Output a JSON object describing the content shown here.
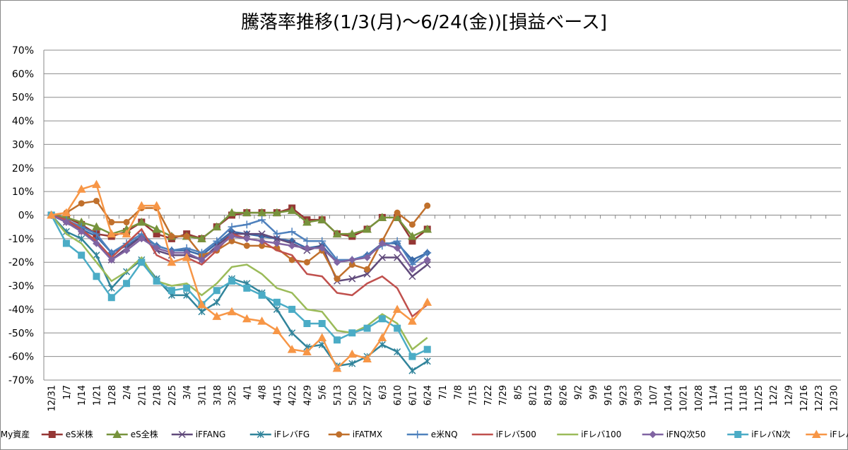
{
  "chart_data": {
    "type": "line",
    "title": "騰落率推移(1/3(月)～6/24(金))[損益ベース]",
    "categories": [
      "12/31",
      "1/7",
      "1/14",
      "1/21",
      "1/28",
      "2/4",
      "2/11",
      "2/18",
      "2/25",
      "3/4",
      "3/11",
      "3/18",
      "3/25",
      "4/1",
      "4/8",
      "4/15",
      "4/22",
      "4/29",
      "5/6",
      "5/13",
      "5/20",
      "5/27",
      "6/3",
      "6/10",
      "6/17",
      "6/24",
      "7/1",
      "7/8",
      "7/15",
      "7/22",
      "7/29",
      "8/5",
      "8/12",
      "8/19",
      "8/26",
      "9/2",
      "9/9",
      "9/16",
      "9/23",
      "9/30",
      "10/7",
      "10/14",
      "10/21",
      "10/28",
      "11/4",
      "11/11",
      "11/18",
      "11/25",
      "12/2",
      "12/9",
      "12/16",
      "12/23",
      "12/30"
    ],
    "ylim": [
      -70,
      70
    ],
    "yticks": [
      {
        "value": -70,
        "label": "-70%"
      },
      {
        "value": -60,
        "label": "-60%"
      },
      {
        "value": -50,
        "label": "-50%"
      },
      {
        "value": -40,
        "label": "-40%"
      },
      {
        "value": -30,
        "label": "-30%"
      },
      {
        "value": -20,
        "label": "-20%"
      },
      {
        "value": -10,
        "label": "-10%"
      },
      {
        "value": 0,
        "label": "0%"
      },
      {
        "value": 10,
        "label": "10%"
      },
      {
        "value": 20,
        "label": "20%"
      },
      {
        "value": 30,
        "label": "30%"
      },
      {
        "value": 40,
        "label": "40%"
      },
      {
        "value": 50,
        "label": "50%"
      },
      {
        "value": 60,
        "label": "60%"
      },
      {
        "value": 70,
        "label": "70%"
      }
    ],
    "grid": true,
    "legend": "bottom",
    "series": [
      {
        "name": "My資産",
        "color": "#3a6aa8",
        "marker": "diamond",
        "values": [
          0,
          -3,
          -6,
          -9,
          -16,
          -13,
          -9,
          -13,
          -15,
          -15,
          -17,
          -12,
          -7,
          -8,
          -9,
          -10,
          -11,
          -14,
          -13,
          -20,
          -19,
          -17,
          -12,
          -12,
          -19,
          -16,
          null,
          null,
          null,
          null,
          null,
          null,
          null,
          null,
          null,
          null,
          null,
          null,
          null,
          null,
          null,
          null,
          null,
          null,
          null,
          null,
          null,
          null,
          null,
          null,
          null,
          null,
          null
        ]
      },
      {
        "name": "eS米株",
        "color": "#953735",
        "marker": "square",
        "values": [
          0,
          -1,
          -4,
          -8,
          -9,
          -7,
          -3,
          -8,
          -10,
          -8,
          -10,
          -5,
          0,
          1,
          1,
          1,
          3,
          -2,
          -2,
          -8,
          -9,
          -6,
          -1,
          -1,
          -11,
          -6,
          null,
          null,
          null,
          null,
          null,
          null,
          null,
          null,
          null,
          null,
          null,
          null,
          null,
          null,
          null,
          null,
          null,
          null,
          null,
          null,
          null,
          null,
          null,
          null,
          null,
          null,
          null
        ]
      },
      {
        "name": "eS全株",
        "color": "#77933c",
        "marker": "triangle",
        "values": [
          0,
          -1,
          -3,
          -5,
          -8,
          -6,
          -3,
          -6,
          -9,
          -9,
          -10,
          -5,
          1,
          1,
          1,
          1,
          2,
          -3,
          -2,
          -8,
          -8,
          -6,
          -1,
          -1,
          -9,
          -6,
          null,
          null,
          null,
          null,
          null,
          null,
          null,
          null,
          null,
          null,
          null,
          null,
          null,
          null,
          null,
          null,
          null,
          null,
          null,
          null,
          null,
          null,
          null,
          null,
          null,
          null,
          null
        ]
      },
      {
        "name": "iFFANG",
        "color": "#604a7b",
        "marker": "x",
        "values": [
          0,
          -3,
          -7,
          -11,
          -19,
          -14,
          -9,
          -15,
          -17,
          -17,
          -19,
          -13,
          -8,
          -8,
          -8,
          -10,
          -12,
          -15,
          -13,
          -28,
          -27,
          -25,
          -18,
          -18,
          -26,
          -21,
          null,
          null,
          null,
          null,
          null,
          null,
          null,
          null,
          null,
          null,
          null,
          null,
          null,
          null,
          null,
          null,
          null,
          null,
          null,
          null,
          null,
          null,
          null,
          null,
          null,
          null,
          null
        ]
      },
      {
        "name": "iFレバFG",
        "color": "#31849b",
        "marker": "star",
        "values": [
          0,
          -7,
          -10,
          -17,
          -31,
          -24,
          -19,
          -27,
          -34,
          -34,
          -41,
          -37,
          -27,
          -29,
          -33,
          -40,
          -50,
          -56,
          -55,
          -64,
          -63,
          -60,
          -55,
          -58,
          -66,
          -62,
          null,
          null,
          null,
          null,
          null,
          null,
          null,
          null,
          null,
          null,
          null,
          null,
          null,
          null,
          null,
          null,
          null,
          null,
          null,
          null,
          null,
          null,
          null,
          null,
          null,
          null,
          null
        ]
      },
      {
        "name": "iFATMX",
        "color": "#c0702c",
        "marker": "circle",
        "values": [
          0,
          1,
          5,
          6,
          -3,
          -3,
          3,
          3,
          -9,
          -9,
          -17,
          -15,
          -11,
          -13,
          -13,
          -14,
          -19,
          -20,
          -15,
          -27,
          -21,
          -23,
          -11,
          1,
          -4,
          4,
          null,
          null,
          null,
          null,
          null,
          null,
          null,
          null,
          null,
          null,
          null,
          null,
          null,
          null,
          null,
          null,
          null,
          null,
          null,
          null,
          null,
          null,
          null,
          null,
          null,
          null,
          null
        ]
      },
      {
        "name": "e米NQ",
        "color": "#4f81bd",
        "marker": "plus",
        "values": [
          0,
          -2,
          -5,
          -8,
          -16,
          -12,
          -8,
          -13,
          -15,
          -14,
          -16,
          -11,
          -5,
          -4,
          -2,
          -8,
          -7,
          -11,
          -11,
          -19,
          -19,
          -17,
          -13,
          -11,
          -21,
          -16,
          null,
          null,
          null,
          null,
          null,
          null,
          null,
          null,
          null,
          null,
          null,
          null,
          null,
          null,
          null,
          null,
          null,
          null,
          null,
          null,
          null,
          null,
          null,
          null,
          null,
          null,
          null
        ]
      },
      {
        "name": "iFレバ500",
        "color": "#c0504d",
        "values": [
          0,
          -2,
          -6,
          -11,
          -18,
          -12,
          -6,
          -17,
          -20,
          -18,
          -21,
          -15,
          -8,
          -10,
          -11,
          -15,
          -17,
          -25,
          -26,
          -33,
          -34,
          -29,
          -26,
          -31,
          -43,
          -38,
          null,
          null,
          null,
          null,
          null,
          null,
          null,
          null,
          null,
          null,
          null,
          null,
          null,
          null,
          null,
          null,
          null,
          null,
          null,
          null,
          null,
          null,
          null,
          null,
          null,
          null,
          null
        ]
      },
      {
        "name": "iFレバ100",
        "color": "#9bbb59",
        "values": [
          0,
          -8,
          -12,
          -20,
          -28,
          -24,
          -18,
          -28,
          -30,
          -29,
          -34,
          -29,
          -22,
          -21,
          -25,
          -31,
          -33,
          -40,
          -41,
          -49,
          -50,
          -47,
          -42,
          -46,
          -57,
          -52,
          null,
          null,
          null,
          null,
          null,
          null,
          null,
          null,
          null,
          null,
          null,
          null,
          null,
          null,
          null,
          null,
          null,
          null,
          null,
          null,
          null,
          null,
          null,
          null,
          null,
          null,
          null
        ]
      },
      {
        "name": "iFNQ次50",
        "color": "#8064a2",
        "marker": "diamond",
        "values": [
          0,
          -3,
          -7,
          -12,
          -19,
          -15,
          -10,
          -14,
          -16,
          -16,
          -19,
          -14,
          -9,
          -10,
          -11,
          -12,
          -13,
          -14,
          -14,
          -20,
          -19,
          -18,
          -12,
          -14,
          -23,
          -19,
          null,
          null,
          null,
          null,
          null,
          null,
          null,
          null,
          null,
          null,
          null,
          null,
          null,
          null,
          null,
          null,
          null,
          null,
          null,
          null,
          null,
          null,
          null,
          null,
          null,
          null,
          null
        ]
      },
      {
        "name": "iFレバN次",
        "color": "#4bacc6",
        "marker": "square",
        "values": [
          0,
          -12,
          -17,
          -26,
          -35,
          -29,
          -20,
          -28,
          -32,
          -31,
          -38,
          -32,
          -28,
          -31,
          -34,
          -37,
          -40,
          -46,
          -46,
          -53,
          -50,
          -48,
          -44,
          -48,
          -60,
          -57,
          null,
          null,
          null,
          null,
          null,
          null,
          null,
          null,
          null,
          null,
          null,
          null,
          null,
          null,
          null,
          null,
          null,
          null,
          null,
          null,
          null,
          null,
          null,
          null,
          null,
          null,
          null
        ]
      },
      {
        "name": "iFレバAT",
        "color": "#f79646",
        "marker": "triangle",
        "values": [
          0,
          1,
          11,
          13,
          -8,
          -8,
          4,
          4,
          -20,
          -18,
          -38,
          -43,
          -41,
          -44,
          -45,
          -49,
          -57,
          -58,
          -52,
          -65,
          -59,
          -61,
          -52,
          -40,
          -45,
          -37,
          null,
          null,
          null,
          null,
          null,
          null,
          null,
          null,
          null,
          null,
          null,
          null,
          null,
          null,
          null,
          null,
          null,
          null,
          null,
          null,
          null,
          null,
          null,
          null,
          null,
          null,
          null
        ]
      }
    ]
  }
}
